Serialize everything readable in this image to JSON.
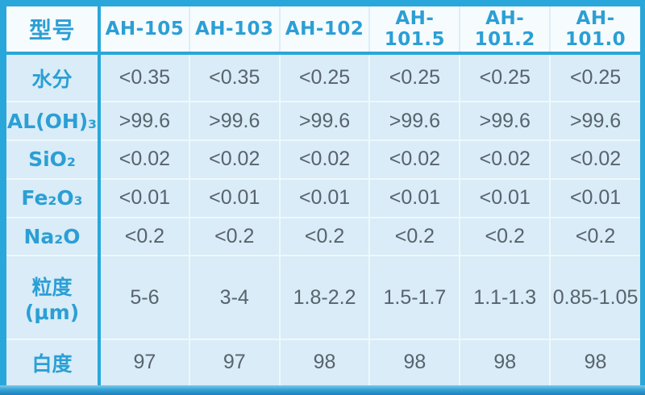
{
  "colors": {
    "accent_cyan": "#29a7da",
    "header_bg": "#f6fbfe",
    "header_text": "#2b9fd5",
    "cell_bg": "#d9ecf7",
    "value_text": "#58636d",
    "grid_line_light": "#eef8fd",
    "bottom_bar_dark": "#1e80bb"
  },
  "table": {
    "corner_label": "型号",
    "models": [
      "AH-105",
      "AH-103",
      "AH-102",
      "AH-101.5",
      "AH-101.2",
      "AH-101.0"
    ],
    "rows": [
      {
        "name": "水分",
        "values": [
          "<0.35",
          "<0.35",
          "<0.25",
          "<0.25",
          "<0.25",
          "<0.25"
        ]
      },
      {
        "name": "AL(OH)₃",
        "values": [
          ">99.6",
          ">99.6",
          ">99.6",
          ">99.6",
          ">99.6",
          ">99.6"
        ]
      },
      {
        "name": "SiO₂",
        "values": [
          "<0.02",
          "<0.02",
          "<0.02",
          "<0.02",
          "<0.02",
          "<0.02"
        ]
      },
      {
        "name": "Fe₂O₃",
        "values": [
          "<0.01",
          "<0.01",
          "<0.01",
          "<0.01",
          "<0.01",
          "<0.01"
        ]
      },
      {
        "name": "Na₂O",
        "values": [
          "<0.2",
          "<0.2",
          "<0.2",
          "<0.2",
          "<0.2",
          "<0.2"
        ]
      },
      {
        "name": "粒度(μm)",
        "values": [
          "5-6",
          "3-4",
          "1.8-2.2",
          "1.5-1.7",
          "1.1-1.3",
          "0.85-1.05"
        ]
      },
      {
        "name": "白度",
        "values": [
          "97",
          "97",
          "98",
          "98",
          "98",
          "98"
        ]
      }
    ]
  }
}
